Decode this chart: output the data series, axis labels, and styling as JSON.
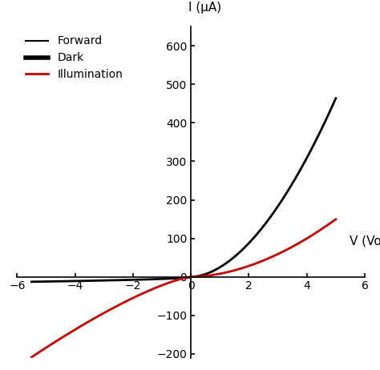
{
  "xlim": [
    -6,
    6
  ],
  "ylim": [
    -210,
    650
  ],
  "xlabel": "V (Volt)",
  "ylabel": "I (μA)",
  "xticks": [
    -6,
    -4,
    -2,
    0,
    2,
    4,
    6
  ],
  "yticks": [
    -200,
    -100,
    0,
    100,
    200,
    300,
    400,
    500,
    600
  ],
  "dark_color": "#000000",
  "illumination_color": "#cc0000",
  "legend_entries": [
    "Forward",
    "Dark",
    "Illumination"
  ],
  "dark_linewidth": 2.0,
  "illum_linewidth": 2.0,
  "background_color": "#ffffff",
  "dark_scale": 22.0,
  "dark_n": 12.0,
  "dark_VT": 0.026,
  "dark_rev_scale": 5.5,
  "illum_Iph": 37.0,
  "illum_rev_scale": 37.0
}
